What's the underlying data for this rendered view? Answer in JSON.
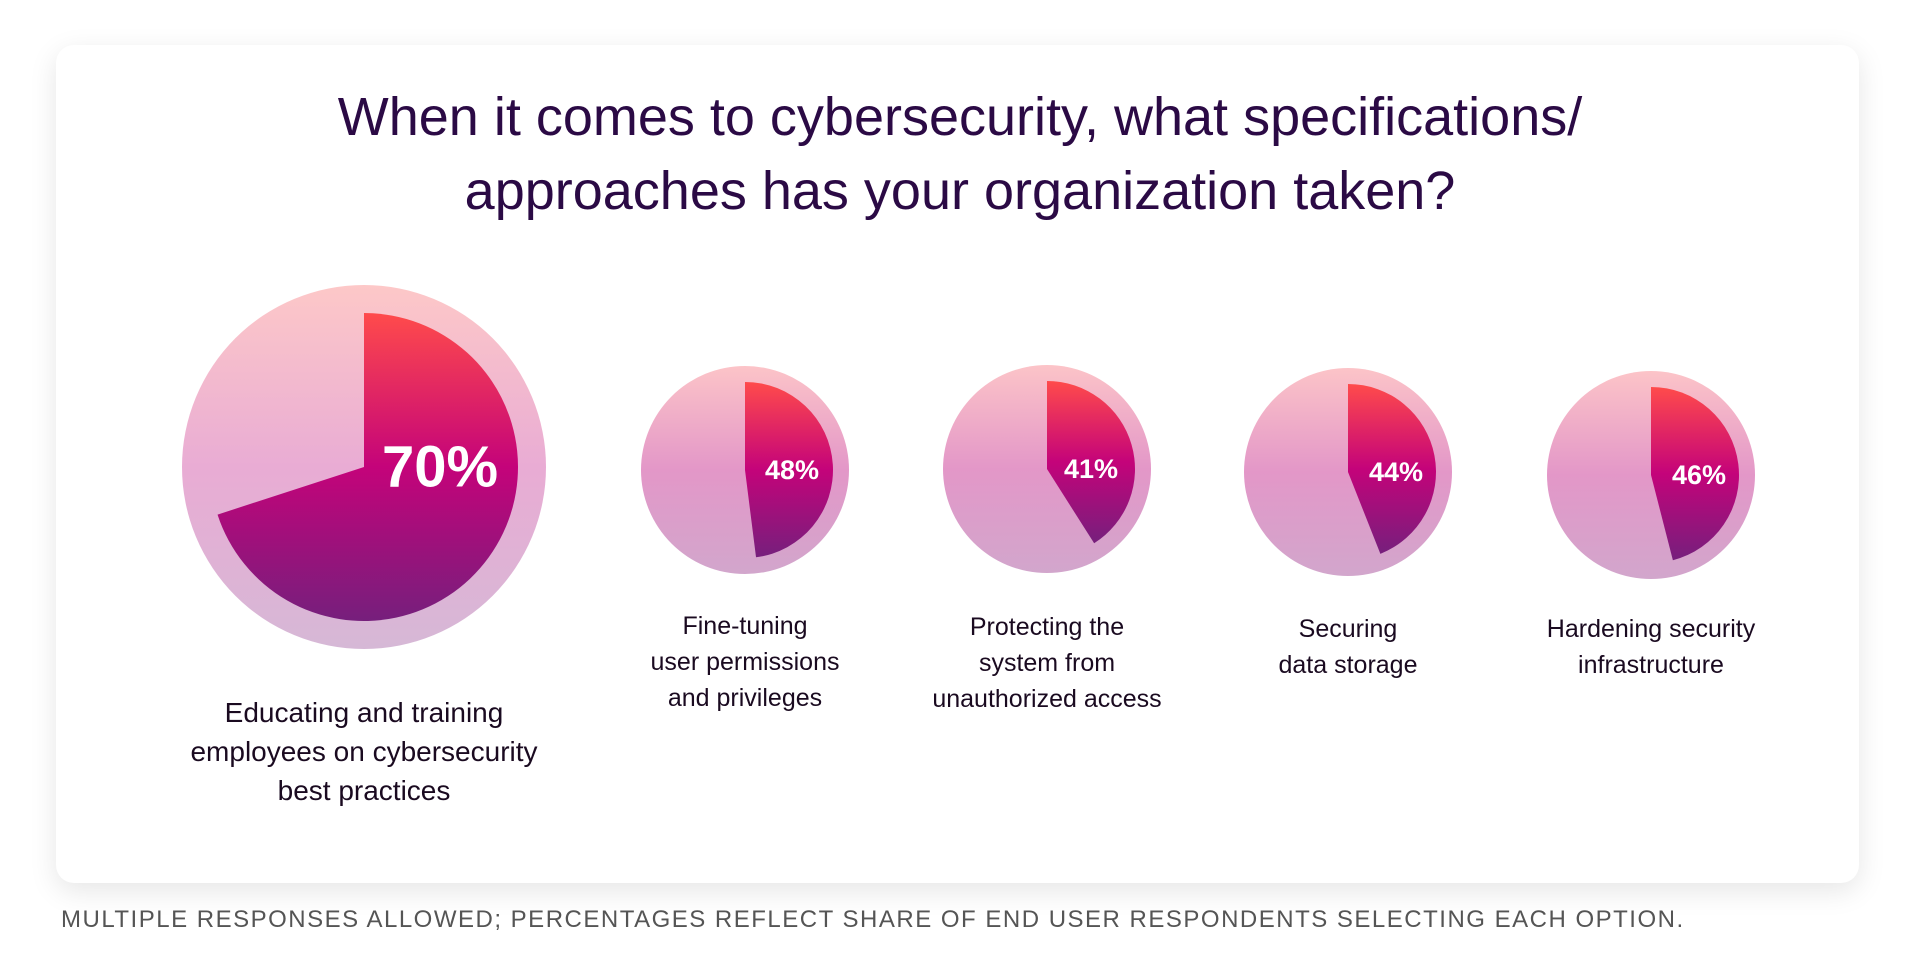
{
  "chart_data": {
    "type": "pie",
    "title_lines": [
      "When it comes to cybersecurity, what specifications/",
      "approaches has your organization taken?"
    ],
    "unit": "%",
    "items": [
      {
        "label_lines": [
          "Educating and training",
          "employees on cybersecurity",
          "best practices"
        ],
        "value": 70,
        "display": "70%"
      },
      {
        "label_lines": [
          "Fine-tuning",
          "user permissions",
          "and privileges"
        ],
        "value": 48,
        "display": "48%"
      },
      {
        "label_lines": [
          "Protecting the",
          "system from",
          "unauthorized access"
        ],
        "value": 41,
        "display": "41%"
      },
      {
        "label_lines": [
          "Securing",
          "data storage"
        ],
        "value": 44,
        "display": "44%"
      },
      {
        "label_lines": [
          "Hardening security",
          "infrastructure"
        ],
        "value": 46,
        "display": "46%"
      }
    ],
    "footnote": "MULTIPLE RESPONSES ALLOWED; PERCENTAGES REFLECT SHARE OF END USER RESPONDENTS SELECTING EACH OPTION.",
    "colors": {
      "fill_top": "#ff4b4b",
      "fill_mid": "#c4037a",
      "fill_bottom": "#761f7c",
      "bg_top": "#fdc8c8",
      "bg_mid": "#e9acd4",
      "bg_bottom": "#d6b8d6",
      "title": "#2b0a45"
    }
  }
}
